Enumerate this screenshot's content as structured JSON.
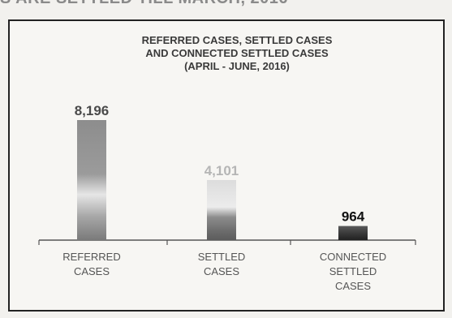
{
  "page": {
    "top_cut_text": "S ARE SETTLED TILL MARCH, 2016"
  },
  "chart_data": {
    "type": "bar",
    "title_lines": [
      "REFERRED CASES, SETTLED CASES",
      "AND  CONNECTED SETTLED CASES",
      "(APRIL - JUNE, 2016)"
    ],
    "categories": [
      [
        "REFERRED",
        "CASES"
      ],
      [
        "SETTLED",
        "CASES"
      ],
      [
        "CONNECTED",
        "SETTLED",
        "CASES"
      ]
    ],
    "values": [
      8196,
      4101,
      964
    ],
    "value_labels": [
      "8,196",
      "4,101",
      "964"
    ],
    "ylim": [
      0,
      8196
    ],
    "grid": false,
    "legend": "none"
  }
}
